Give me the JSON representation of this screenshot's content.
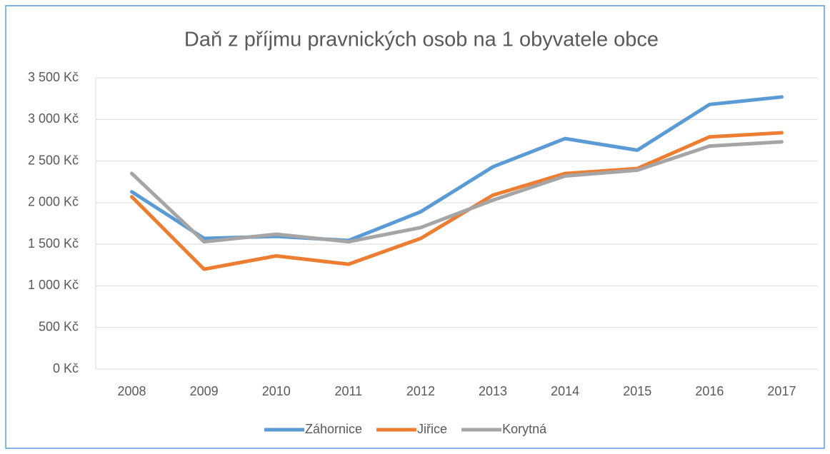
{
  "chart_data": {
    "type": "line",
    "title": "Daň z příjmu pravnických osob na 1 obyvatele obce",
    "categories": [
      "2008",
      "2009",
      "2010",
      "2011",
      "2012",
      "2013",
      "2014",
      "2015",
      "2016",
      "2017"
    ],
    "series": [
      {
        "name": "Záhornice",
        "color": "#5b9bd5",
        "values": [
          2130,
          1570,
          1595,
          1545,
          1890,
          2430,
          2770,
          2630,
          3180,
          3270
        ]
      },
      {
        "name": "Jiřice",
        "color": "#ed7d31",
        "values": [
          2070,
          1200,
          1360,
          1260,
          1570,
          2090,
          2350,
          2410,
          2790,
          2840
        ]
      },
      {
        "name": "Korytná",
        "color": "#a5a5a5",
        "values": [
          2350,
          1530,
          1620,
          1530,
          1700,
          2030,
          2320,
          2390,
          2680,
          2730
        ]
      }
    ],
    "ylim": [
      0,
      3500
    ],
    "yticks": [
      {
        "value": 0,
        "label": "0 Kč"
      },
      {
        "value": 500,
        "label": "500 Kč"
      },
      {
        "value": 1000,
        "label": "1 000 Kč"
      },
      {
        "value": 1500,
        "label": "1 500 Kč"
      },
      {
        "value": 2000,
        "label": "2 000 Kč"
      },
      {
        "value": 2500,
        "label": "2 500 Kč"
      },
      {
        "value": 3000,
        "label": "3 000 Kč"
      },
      {
        "value": 3500,
        "label": "3 500 Kč"
      }
    ],
    "grid": true,
    "legend": "bottom"
  }
}
